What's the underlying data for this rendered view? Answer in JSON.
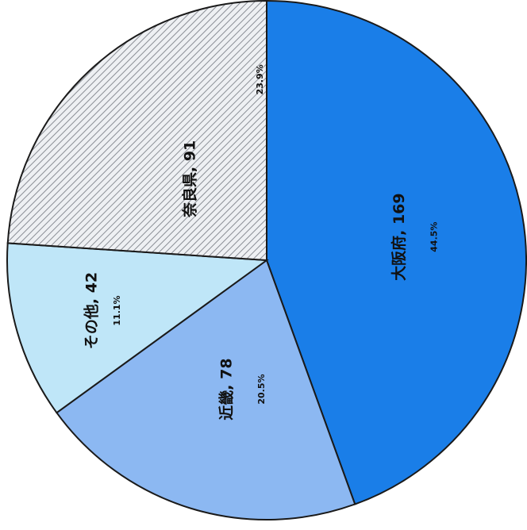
{
  "chart_data": {
    "type": "pie",
    "slices": [
      {
        "label": "大阪府, 169",
        "name": "大阪府",
        "value": 169,
        "percent_label": "44.5%",
        "percent": 44.5,
        "color": "#1a7ee8",
        "pattern": "solid"
      },
      {
        "label": "近畿, 78",
        "name": "近畿",
        "value": 78,
        "percent_label": "20.5%",
        "percent": 20.5,
        "color": "#8cb8f2",
        "pattern": "solid"
      },
      {
        "label": "その他, 42",
        "name": "その他",
        "value": 42,
        "percent_label": "11.1%",
        "percent": 11.1,
        "color": "#bfe6f8",
        "pattern": "solid"
      },
      {
        "label": "奈良県, 91",
        "name": "奈良県",
        "value": 91,
        "percent_label": "23.9%",
        "percent": 23.9,
        "color": "#d4d7dc",
        "pattern": "hatched"
      }
    ],
    "start_angle_deg": 0,
    "direction": "clockwise",
    "orientation": "rotated 90° clockwise",
    "legend": "none",
    "outline_color": "#1a1a1a"
  }
}
